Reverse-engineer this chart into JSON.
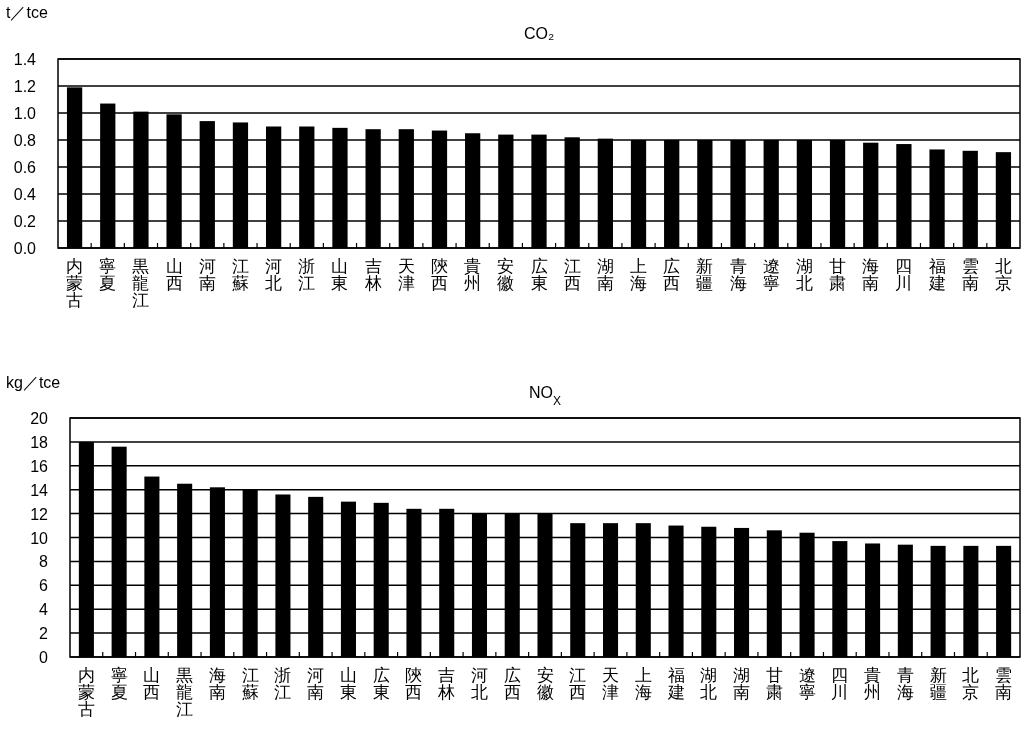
{
  "chart_data": [
    {
      "type": "bar",
      "title": "CO₂",
      "ylabel": "t／tce",
      "color": "#000000",
      "grid": "y",
      "categories": [
        "内蒙古",
        "寧夏",
        "黒龍江",
        "山西",
        "河南",
        "江蘇",
        "河北",
        "浙江",
        "山東",
        "吉林",
        "天津",
        "陝西",
        "貴州",
        "安徽",
        "広東",
        "江西",
        "湖南",
        "上海",
        "広西",
        "新疆",
        "青海",
        "遼寧",
        "湖北",
        "甘粛",
        "海南",
        "四川",
        "福建",
        "雲南",
        "北京"
      ],
      "values": [
        1.19,
        1.07,
        1.01,
        0.99,
        0.94,
        0.93,
        0.9,
        0.9,
        0.89,
        0.88,
        0.88,
        0.87,
        0.85,
        0.84,
        0.84,
        0.82,
        0.81,
        0.8,
        0.8,
        0.8,
        0.8,
        0.8,
        0.8,
        0.8,
        0.78,
        0.77,
        0.73,
        0.72,
        0.71
      ],
      "ylim": [
        0,
        1.4
      ],
      "yticks": [
        {
          "value": 0,
          "label": "0.0"
        },
        {
          "value": 0.2,
          "label": "0.2"
        },
        {
          "value": 0.4,
          "label": "0.4"
        },
        {
          "value": 0.6,
          "label": "0.6"
        },
        {
          "value": 0.8,
          "label": "0.8"
        },
        {
          "value": 1.0,
          "label": "1.0"
        },
        {
          "value": 1.2,
          "label": "1.2"
        },
        {
          "value": 1.4,
          "label": "1.4"
        }
      ]
    },
    {
      "type": "bar",
      "title": "NO$_{X}$",
      "ylabel": "kg／tce",
      "color": "#000000",
      "grid": "y",
      "categories": [
        "内蒙古",
        "寧夏",
        "山西",
        "黒龍江",
        "海南",
        "江蘇",
        "浙江",
        "河南",
        "山東",
        "広東",
        "陝西",
        "吉林",
        "河北",
        "広西",
        "安徽",
        "江西",
        "天津",
        "上海",
        "福建",
        "湖北",
        "湖南",
        "甘粛",
        "遼寧",
        "四川",
        "貴州",
        "青海",
        "新疆",
        "北京",
        "雲南"
      ],
      "values": [
        18.0,
        17.6,
        15.1,
        14.5,
        14.2,
        14.0,
        13.6,
        13.4,
        13.0,
        12.9,
        12.4,
        12.4,
        12.0,
        12.0,
        12.0,
        11.2,
        11.2,
        11.2,
        11.0,
        10.9,
        10.8,
        10.6,
        10.4,
        9.7,
        9.5,
        9.4,
        9.3,
        9.3,
        9.3
      ],
      "ylim": [
        0,
        20
      ],
      "yticks": [
        0,
        2,
        4,
        6,
        8,
        10,
        12,
        14,
        16,
        18,
        20
      ]
    }
  ]
}
